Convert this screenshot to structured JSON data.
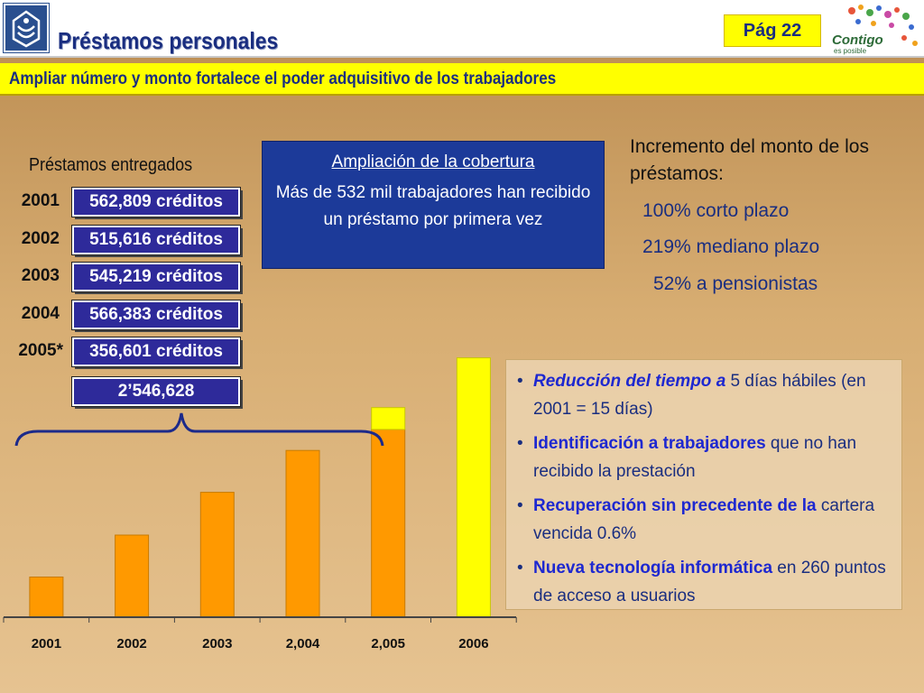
{
  "header": {
    "title": "Préstamos personales",
    "page": "Pág 22",
    "partner_logo": {
      "line1": "Contigo",
      "line2": "es posible"
    }
  },
  "subtitle": "Ampliar número y monto fortalece el poder adquisitivo de los trabajadores",
  "loans": {
    "heading": "Préstamos entregados",
    "rows": [
      {
        "year": "2001",
        "credits": "562,809 créditos"
      },
      {
        "year": "2002",
        "credits": "515,616 créditos"
      },
      {
        "year": "2003",
        "credits": "545,219 créditos"
      },
      {
        "year": "2004",
        "credits": "566,383 créditos"
      },
      {
        "year": "2005*",
        "credits": "356,601 créditos"
      }
    ],
    "total": "2’546,628"
  },
  "coverage": {
    "title": "Ampliación de la cobertura",
    "body": "Más de 532 mil  trabajadores han recibido un préstamo por primera vez"
  },
  "increase": {
    "heading": "Incremento del monto de los préstamos:",
    "items": [
      "100% corto plazo",
      "219% mediano plazo",
      "52% a pensionistas"
    ]
  },
  "bullets": [
    {
      "strong": "Reducción del tiempo a",
      "rest": "  5 días hábiles (en 2001 = 15 días)"
    },
    {
      "strong": "Identificación a trabajadores",
      "rest": " que no han recibido la prestación"
    },
    {
      "strong": "Recuperación sin precedente de la",
      "rest": " cartera vencida 0.6%"
    },
    {
      "strong": "Nueva tecnología informática",
      "rest": " en 260 puntos de acceso a usuarios"
    }
  ],
  "colors": {
    "title_blue": "#1a2e80",
    "header_yellow": "#ffff00",
    "box_blue": "#2e2a9a",
    "bar_orange": "#ff9900",
    "bar_yellow": "#ffff00"
  },
  "chart_data": {
    "type": "bar",
    "categories": [
      "2001",
      "2002",
      "2003",
      "2,004",
      "2,005",
      "2006"
    ],
    "series": [
      {
        "values": [
          46,
          94,
          143,
          191,
          215,
          0
        ]
      },
      {
        "values": [
          0,
          0,
          0,
          0,
          25,
          297
        ]
      }
    ],
    "stacked": true,
    "yaxis_visible": false,
    "ylim": [
      0,
      310
    ],
    "grid": false
  }
}
